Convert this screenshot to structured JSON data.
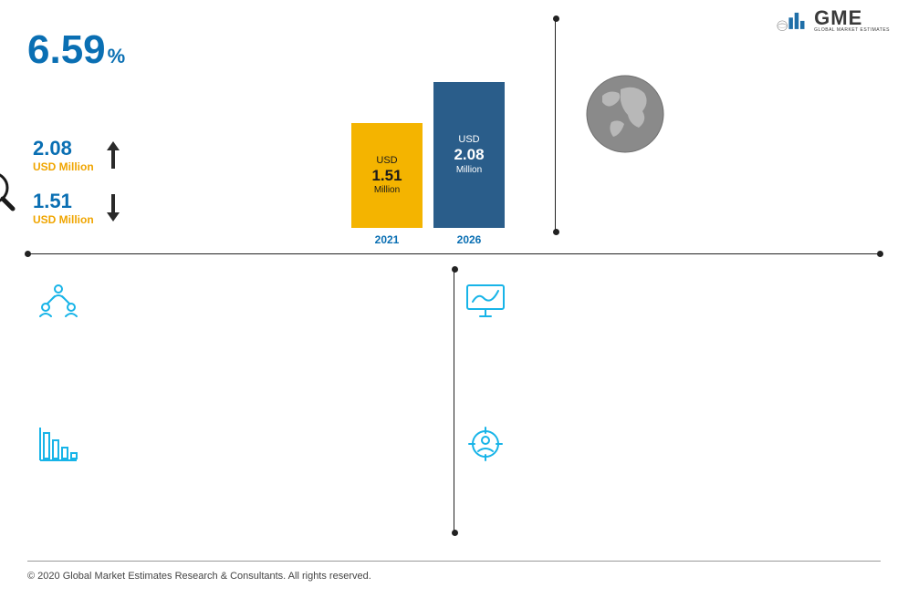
{
  "logo": {
    "text": "GME",
    "subtext": "GLOBAL MARKET ESTIMATES",
    "bar_color": "#1f6fa8",
    "text_color": "#3a3a3a",
    "globe_color": "#888888"
  },
  "cagr": {
    "value": "6.59",
    "unit": "%",
    "color": "#0a6fb3",
    "fontsize": 44
  },
  "market_values": {
    "high": {
      "value": "2.08",
      "unit": "USD Million",
      "color_num": "#0a6fb3",
      "color_unit": "#f0a500",
      "arrow_dir": "up",
      "arrow_color": "#2a2a2a"
    },
    "low": {
      "value": "1.51",
      "unit": "USD Million",
      "color_num": "#0a6fb3",
      "color_unit": "#f0a500",
      "arrow_dir": "down",
      "arrow_color": "#2a2a2a"
    }
  },
  "chart": {
    "type": "bar",
    "bars": [
      {
        "year": "2021",
        "currency": "USD",
        "value": "1.51",
        "unit": "Million",
        "height": 115,
        "fill": "#f4b400",
        "text_color": "#1a1a1a"
      },
      {
        "year": "2026",
        "currency": "USD",
        "value": "2.08",
        "unit": "Million",
        "height": 160,
        "fill": "#2a5d8a",
        "text_color": "#ffffff"
      }
    ],
    "label_color": "#0a6fb3",
    "label_fontsize": 12
  },
  "globe": {
    "color": "#8a8a8a"
  },
  "icons": {
    "analytics_color": "#1a1a1a",
    "quadrant_color": "#17b4e8"
  },
  "footer": "© 2020 Global Market Estimates Research & Consultants. All rights reserved.",
  "colors": {
    "divider": "#222222",
    "background": "#ffffff"
  }
}
